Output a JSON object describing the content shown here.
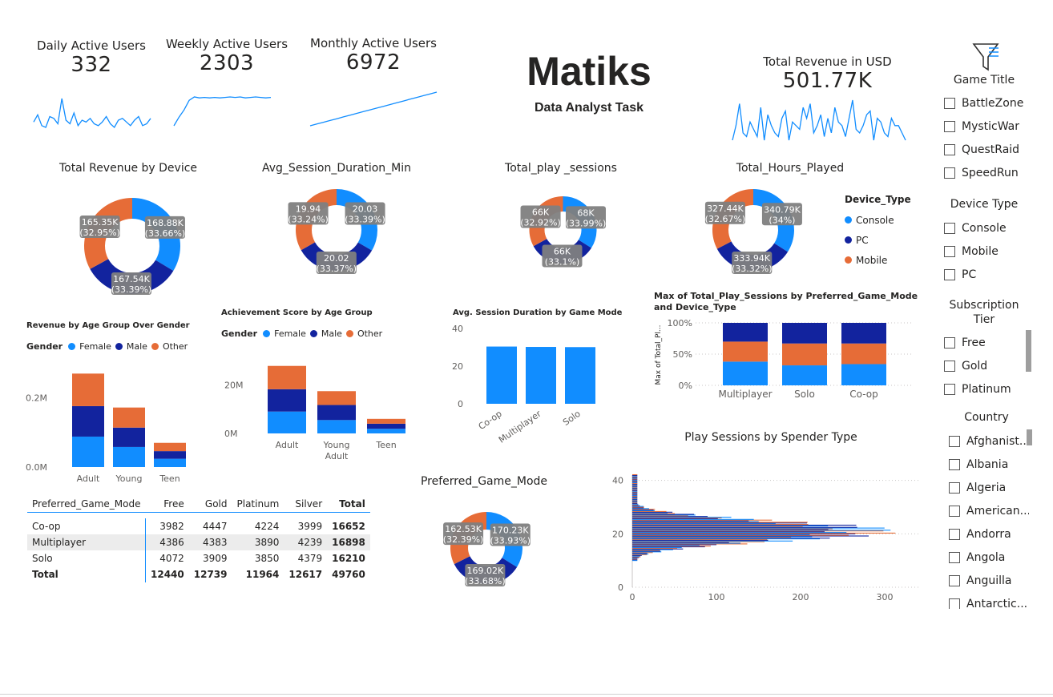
{
  "kpis": {
    "daily": {
      "label": "Daily Active Users",
      "value": "332"
    },
    "weekly": {
      "label": "Weekly Active Users",
      "value": "2303"
    },
    "monthly": {
      "label": "Monthly Active Users",
      "value": "6972"
    },
    "revenue": {
      "label": "Total Revenue in USD",
      "value": "501.77K"
    }
  },
  "header": {
    "title": "Matiks",
    "subtitle": "Data Analyst Task"
  },
  "colors": {
    "console": "#118DFF",
    "pc": "#12239E",
    "mobile": "#E66C37",
    "label_bg": "#7f7f7f",
    "line": "#118DFF"
  },
  "donuts": {
    "revenue_by_device": {
      "title": "Total Revenue by Device",
      "slices": [
        {
          "name": "Console",
          "value": 168.88,
          "label": "168.88K",
          "pct": "(33.66%)"
        },
        {
          "name": "PC",
          "value": 167.54,
          "label": "167.54K",
          "pct": "(33.39%)"
        },
        {
          "name": "Mobile",
          "value": 165.35,
          "label": "165.35K",
          "pct": "(32.95%)"
        }
      ]
    },
    "avg_session": {
      "title": "Avg_Session_Duration_Min",
      "slices": [
        {
          "name": "Console",
          "value": 20.03,
          "label": "20.03",
          "pct": "(33.39%)"
        },
        {
          "name": "PC",
          "value": 20.02,
          "label": "20.02",
          "pct": "(33.37%)"
        },
        {
          "name": "Mobile",
          "value": 19.94,
          "label": "19.94",
          "pct": "(33.24%)"
        }
      ]
    },
    "play_sessions": {
      "title": "Total_play _sessions",
      "slices": [
        {
          "name": "Console",
          "value": 68,
          "label": "68K",
          "pct": "(33.99%)"
        },
        {
          "name": "PC",
          "value": 66,
          "label": "66K",
          "pct": "(33.1%)"
        },
        {
          "name": "Mobile",
          "value": 66,
          "label": "66K",
          "pct": "(32.92%)"
        }
      ]
    },
    "hours_played": {
      "title": "Total_Hours_Played",
      "slices": [
        {
          "name": "Console",
          "value": 340.79,
          "label": "340.79K",
          "pct": "(34%)"
        },
        {
          "name": "PC",
          "value": 333.94,
          "label": "333.94K",
          "pct": "(33.32%)"
        },
        {
          "name": "Mobile",
          "value": 327.44,
          "label": "327.44K",
          "pct": "(32.67%)"
        }
      ]
    },
    "preferred_mode": {
      "title": "Preferred_Game_Mode",
      "slices": [
        {
          "name": "Console",
          "value": 170.23,
          "label": "170.23K",
          "pct": "(33.93%)"
        },
        {
          "name": "PC",
          "value": 169.02,
          "label": "169.02K",
          "pct": "(33.68%)"
        },
        {
          "name": "Mobile",
          "value": 162.53,
          "label": "162.53K",
          "pct": "(32.39%)"
        }
      ]
    }
  },
  "device_legend": {
    "title": "Device_Type",
    "items": [
      "Console",
      "PC",
      "Mobile"
    ]
  },
  "gender_legend": {
    "title": "Gender",
    "items": [
      "Female",
      "Male",
      "Other"
    ]
  },
  "chart_data": [
    {
      "type": "line",
      "id": "dau_spark",
      "values": [
        14,
        22,
        10,
        8,
        20,
        18,
        12,
        40,
        16,
        12,
        24,
        10,
        16,
        14,
        18,
        12,
        10,
        14,
        20,
        12,
        8,
        16,
        18,
        14,
        10,
        16,
        20,
        10,
        12,
        18
      ]
    },
    {
      "type": "line",
      "id": "wau_spark",
      "values": [
        2,
        20,
        35,
        55,
        62,
        60,
        61,
        60,
        61,
        60,
        61,
        62,
        61,
        62,
        60,
        61,
        62,
        61,
        60,
        61
      ]
    },
    {
      "type": "line",
      "id": "mau_spark",
      "values": [
        5,
        10,
        15,
        20,
        25,
        30,
        35,
        40,
        45,
        50,
        55,
        60,
        65,
        70,
        75,
        80,
        85,
        90,
        95,
        100
      ]
    },
    {
      "type": "line",
      "id": "revenue_spark",
      "values": [
        10,
        30,
        60,
        20,
        15,
        35,
        25,
        15,
        55,
        10,
        45,
        30,
        20,
        15,
        40,
        50,
        10,
        35,
        30,
        25,
        55,
        40,
        60,
        20,
        30,
        45,
        15,
        40,
        20,
        55,
        35,
        30,
        15,
        40,
        65,
        25,
        20,
        30,
        45,
        50,
        10,
        40,
        35,
        20,
        15,
        40,
        30,
        30,
        20,
        10
      ]
    },
    {
      "type": "bar",
      "id": "revenue_by_age_gender",
      "title": "Revenue by Age Group Over Gender",
      "categories": [
        "Adult",
        "Young",
        "Teen"
      ],
      "series": [
        {
          "name": "Female",
          "values": [
            0.088,
            0.058,
            0.024
          ]
        },
        {
          "name": "Male",
          "values": [
            0.088,
            0.056,
            0.022
          ]
        },
        {
          "name": "Other",
          "values": [
            0.094,
            0.058,
            0.024
          ]
        }
      ],
      "ticks": [
        "0.2M",
        "0.0M"
      ],
      "ylim": [
        0,
        0.28
      ]
    },
    {
      "type": "bar",
      "id": "achievement_by_age",
      "title": "Achievement Score by Age Group",
      "categories": [
        "Adult",
        "Young Adult",
        "Teen"
      ],
      "series": [
        {
          "name": "Female",
          "values": [
            9,
            5.5,
            1.9
          ]
        },
        {
          "name": "Male",
          "values": [
            9.2,
            6.2,
            2.1
          ]
        },
        {
          "name": "Other",
          "values": [
            9.6,
            5.7,
            2
          ]
        }
      ],
      "ticks": [
        "20M",
        "0M"
      ],
      "ylim": [
        0,
        32
      ]
    },
    {
      "type": "bar",
      "id": "avg_session_by_mode",
      "title": "Avg. Session Duration by Game Mode",
      "categories": [
        "Co-op",
        "Multiplayer",
        "Solo"
      ],
      "values": [
        30.4,
        30.2,
        30.1
      ],
      "ticks": [
        "40",
        "20",
        "0"
      ],
      "ylim": [
        0,
        40
      ]
    },
    {
      "type": "bar",
      "id": "max_sessions_mode_device",
      "title": "Max of Total_Play_Sessions by Preferred_Game_Mode and Device_Type",
      "ylabel": "Max of Total_Pl...",
      "categories": [
        "Multiplayer",
        "Solo",
        "Co-op"
      ],
      "series": [
        {
          "name": "Console",
          "values": [
            38,
            32,
            34
          ]
        },
        {
          "name": "Mobile",
          "values": [
            32,
            35,
            33
          ]
        },
        {
          "name": "PC",
          "values": [
            30,
            33,
            33
          ]
        }
      ],
      "ticks": [
        "100%",
        "50%",
        "0%"
      ],
      "ylim": [
        0,
        100
      ]
    },
    {
      "type": "bar",
      "id": "play_sessions_by_spender",
      "title": "Play Sessions by Spender Type",
      "xticks": [
        "0",
        "100",
        "200",
        "300"
      ],
      "yticks": [
        "40",
        "20",
        "0"
      ],
      "xlim": [
        0,
        340
      ],
      "ylim": [
        0,
        42
      ]
    }
  ],
  "matrix": {
    "headers": [
      "Preferred_Game_Mode",
      "Free",
      "Gold",
      "Platinum",
      "Silver",
      "Total"
    ],
    "rows": [
      [
        "Co-op",
        "3982",
        "4447",
        "4224",
        "3999",
        "16652"
      ],
      [
        "Multiplayer",
        "4386",
        "4383",
        "3890",
        "4239",
        "16898"
      ],
      [
        "Solo",
        "4072",
        "3909",
        "3850",
        "4379",
        "16210"
      ]
    ],
    "total": [
      "Total",
      "12440",
      "12739",
      "11964",
      "12617",
      "49760"
    ]
  },
  "slicers": {
    "game_title": {
      "title": "Game Title",
      "items": [
        "BattleZone",
        "MysticWar",
        "QuestRaid",
        "SpeedRun"
      ]
    },
    "device_type": {
      "title": "Device Type",
      "items": [
        "Console",
        "Mobile",
        "PC"
      ]
    },
    "subscription": {
      "title": "Subscription Tier",
      "items": [
        "Free",
        "Gold",
        "Platinum"
      ]
    },
    "country": {
      "title": "Country",
      "items": [
        "Afghanist...",
        "Albania",
        "Algeria",
        "American...",
        "Andorra",
        "Angola",
        "Anguilla",
        "Antarctic..."
      ]
    }
  }
}
